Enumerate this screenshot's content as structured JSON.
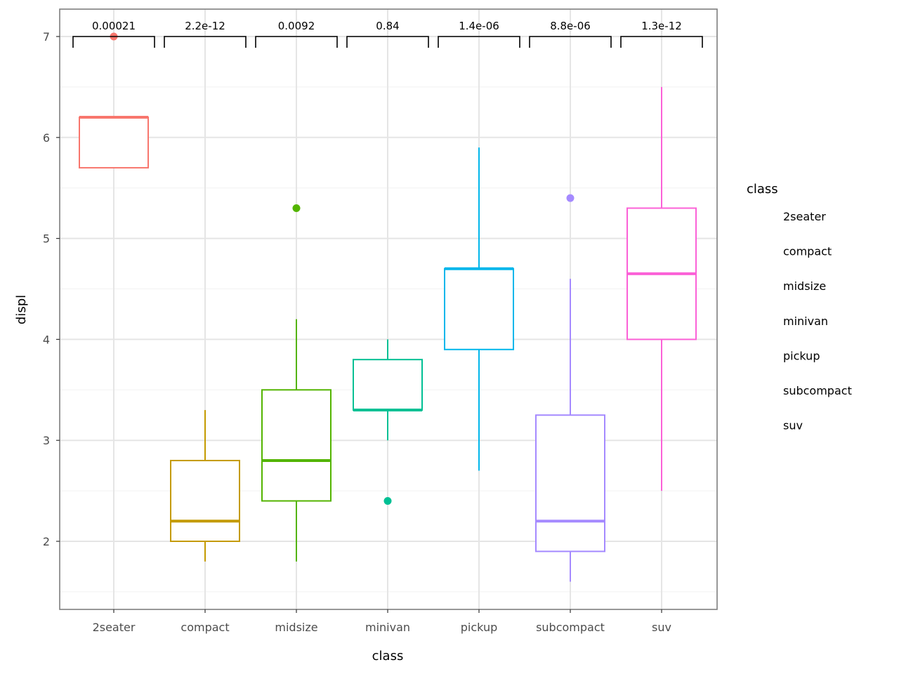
{
  "chart_data": {
    "type": "boxplot",
    "xlabel": "class",
    "ylabel": "displ",
    "ylim": [
      1.325,
      7.27
    ],
    "yticks": [
      2,
      3,
      4,
      5,
      6,
      7
    ],
    "grid": true,
    "categories": [
      "2seater",
      "compact",
      "midsize",
      "minivan",
      "pickup",
      "subcompact",
      "suv"
    ],
    "colors": [
      "#F8766D",
      "#C49A00",
      "#53B400",
      "#00C094",
      "#00B6EB",
      "#A58AFF",
      "#FB61D7"
    ],
    "boxes": [
      {
        "lower_whisker": 5.7,
        "q1": 5.7,
        "median": 6.2,
        "q3": 6.2,
        "upper_whisker": 6.2,
        "outliers": [
          7.0
        ]
      },
      {
        "lower_whisker": 1.8,
        "q1": 2.0,
        "median": 2.2,
        "q3": 2.8,
        "upper_whisker": 3.3,
        "outliers": []
      },
      {
        "lower_whisker": 1.8,
        "q1": 2.4,
        "median": 2.8,
        "q3": 3.5,
        "upper_whisker": 4.2,
        "outliers": [
          5.3
        ]
      },
      {
        "lower_whisker": 3.0,
        "q1": 3.3,
        "median": 3.3,
        "q3": 3.8,
        "upper_whisker": 4.0,
        "outliers": [
          2.4
        ]
      },
      {
        "lower_whisker": 2.7,
        "q1": 3.9,
        "median": 4.7,
        "q3": 4.7,
        "upper_whisker": 5.9,
        "outliers": []
      },
      {
        "lower_whisker": 1.6,
        "q1": 1.9,
        "median": 2.2,
        "q3": 3.25,
        "upper_whisker": 4.6,
        "outliers": [
          5.4
        ]
      },
      {
        "lower_whisker": 2.5,
        "q1": 4.0,
        "median": 4.65,
        "q3": 5.3,
        "upper_whisker": 6.5,
        "outliers": []
      }
    ],
    "annotations": [
      "0.00021",
      "2.2e-12",
      "0.0092",
      "0.84",
      "1.4e-06",
      "8.8e-06",
      "1.3e-12"
    ],
    "legend": {
      "title": "class",
      "placement": "right",
      "entries": [
        "2seater",
        "compact",
        "midsize",
        "minivan",
        "pickup",
        "subcompact",
        "suv"
      ]
    }
  }
}
